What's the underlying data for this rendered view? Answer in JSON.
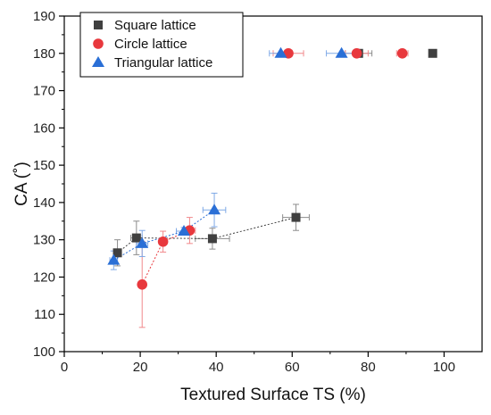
{
  "chart_data": {
    "type": "scatter",
    "xlabel": "Textured Surface TS (%)",
    "ylabel": "CA (˚)",
    "xlim": [
      0,
      110
    ],
    "ylim": [
      100,
      190
    ],
    "xticks": [
      0,
      20,
      40,
      60,
      80,
      100
    ],
    "yticks": [
      100,
      110,
      120,
      130,
      140,
      150,
      160,
      170,
      180,
      190
    ],
    "legend_position": "top-left",
    "series": [
      {
        "name": "Square lattice",
        "marker": "square",
        "color": "#404040",
        "points": [
          {
            "x": 14,
            "y": 126.5,
            "xerr": 1.0,
            "yerr": 3.5
          },
          {
            "x": 19,
            "y": 130.5,
            "xerr": 1.5,
            "yerr": 4.5
          },
          {
            "x": 39,
            "y": 130.3,
            "xerr": 4.5,
            "yerr": 2.8
          },
          {
            "x": 61,
            "y": 136,
            "xerr": 3.5,
            "yerr": 3.5
          },
          {
            "x": 77.5,
            "y": 180,
            "xerr": 3.5,
            "yerr": 0
          },
          {
            "x": 97,
            "y": 180,
            "xerr": 0,
            "yerr": 0
          }
        ],
        "dotted_line_points": 4
      },
      {
        "name": "Circle lattice",
        "marker": "circle",
        "color": "#e8383d",
        "points": [
          {
            "x": 20.5,
            "y": 118,
            "xerr": 0.5,
            "yerr": 11.5
          },
          {
            "x": 26,
            "y": 129.5,
            "xerr": 1.0,
            "yerr": 2.8
          },
          {
            "x": 33,
            "y": 132.5,
            "xerr": 1.5,
            "yerr": 3.5
          },
          {
            "x": 59,
            "y": 180,
            "xerr": 4.0,
            "yerr": 0
          },
          {
            "x": 77,
            "y": 180,
            "xerr": 3.0,
            "yerr": 0
          },
          {
            "x": 89,
            "y": 180,
            "xerr": 1.5,
            "yerr": 0
          }
        ],
        "dotted_line_points": 3
      },
      {
        "name": "Triangular lattice",
        "marker": "triangle",
        "color": "#2a6fd6",
        "points": [
          {
            "x": 13,
            "y": 124.5,
            "xerr": 1.0,
            "yerr": 2.5
          },
          {
            "x": 20.5,
            "y": 129,
            "xerr": 1.5,
            "yerr": 3.5
          },
          {
            "x": 31.5,
            "y": 132.3,
            "xerr": 2.0,
            "yerr": 1.0
          },
          {
            "x": 39.5,
            "y": 138,
            "xerr": 3.0,
            "yerr": 4.5
          },
          {
            "x": 57,
            "y": 180,
            "xerr": 3.0,
            "yerr": 0
          },
          {
            "x": 73,
            "y": 180,
            "xerr": 4.0,
            "yerr": 0
          }
        ],
        "dotted_line_points": 4
      }
    ]
  }
}
